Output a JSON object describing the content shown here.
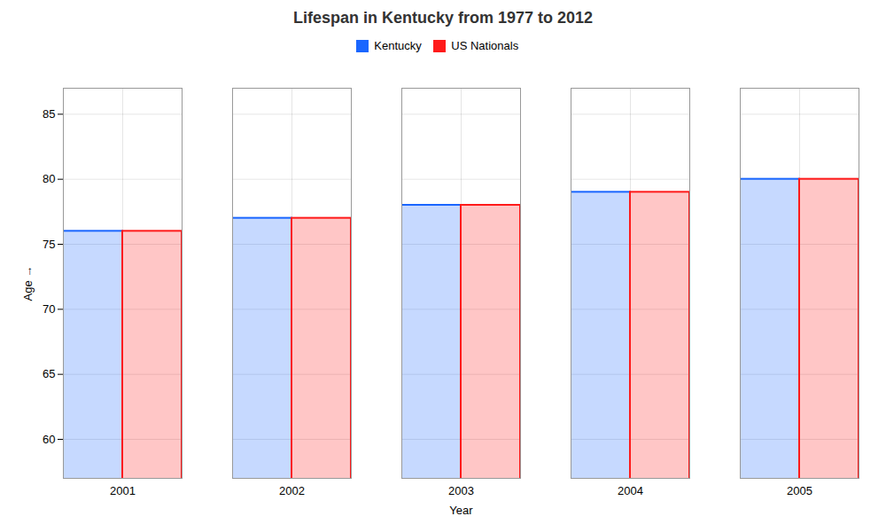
{
  "chart_data": {
    "type": "bar",
    "title": "Lifespan in Kentucky from 1977 to 2012",
    "xlabel": "Year",
    "ylabel": "Age",
    "categories": [
      "2001",
      "2002",
      "2003",
      "2004",
      "2005"
    ],
    "series": [
      {
        "name": "Kentucky",
        "color": "#1a66ff",
        "values": [
          76,
          77,
          78,
          79,
          80
        ]
      },
      {
        "name": "US Nationals",
        "color": "#ff1a1a",
        "values": [
          76,
          77,
          78,
          79,
          80
        ]
      }
    ],
    "ylim": [
      57,
      87
    ],
    "yticks": [
      60,
      65,
      70,
      75,
      80,
      85
    ],
    "grid": true,
    "legend": "top"
  }
}
